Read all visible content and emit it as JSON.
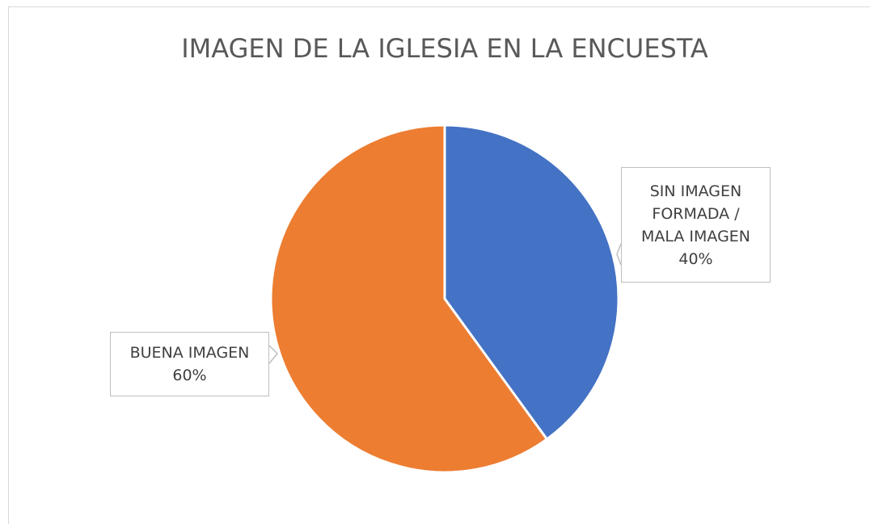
{
  "chart_data": {
    "type": "pie",
    "title": "IMAGEN DE LA IGLESIA EN LA ENCUESTA",
    "categories": [
      "SIN IMAGEN FORMADA / MALA IMAGEN",
      "BUENA IMAGEN"
    ],
    "values": [
      40,
      60
    ],
    "value_labels": [
      "40%",
      "60%"
    ],
    "colors": [
      "#4472c4",
      "#ed7d31"
    ]
  }
}
